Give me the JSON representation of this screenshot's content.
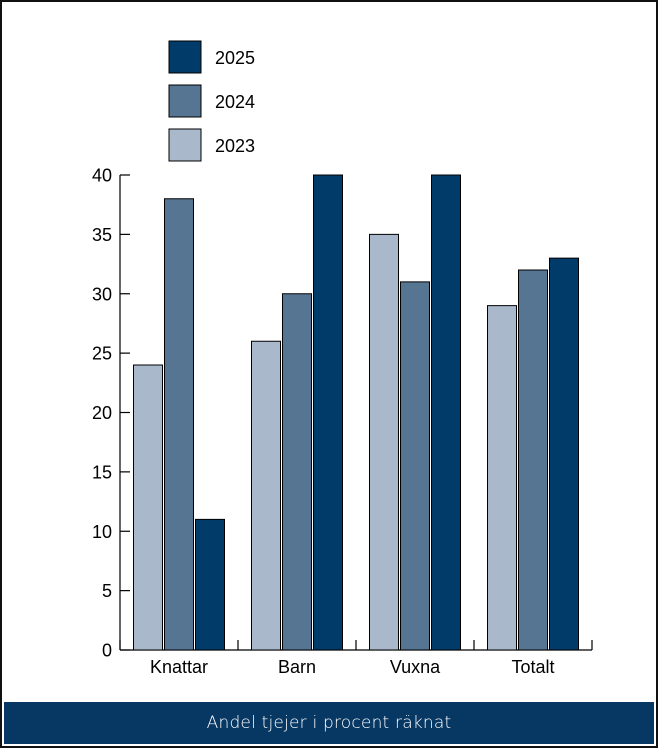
{
  "caption": "Andel tjejer i procent räknat",
  "colors": {
    "2025": "#003b6a",
    "2024": "#567592",
    "2023": "#a9b8cb",
    "caption_bg": "#073763"
  },
  "chart_data": {
    "type": "bar",
    "categories": [
      "Knattar",
      "Barn",
      "Vuxna",
      "Totalt"
    ],
    "series": [
      {
        "name": "2023",
        "values": [
          24,
          26,
          35,
          29
        ]
      },
      {
        "name": "2024",
        "values": [
          38,
          30,
          31,
          32
        ]
      },
      {
        "name": "2025",
        "values": [
          11,
          40,
          40,
          33
        ]
      }
    ],
    "legend_order": [
      "2025",
      "2024",
      "2023"
    ],
    "legend_position": "top-left",
    "ylim": [
      0,
      40
    ],
    "yticks": [
      0,
      5,
      10,
      15,
      20,
      25,
      30,
      35,
      40
    ],
    "grid": false,
    "title": "",
    "xlabel": "",
    "ylabel": ""
  }
}
